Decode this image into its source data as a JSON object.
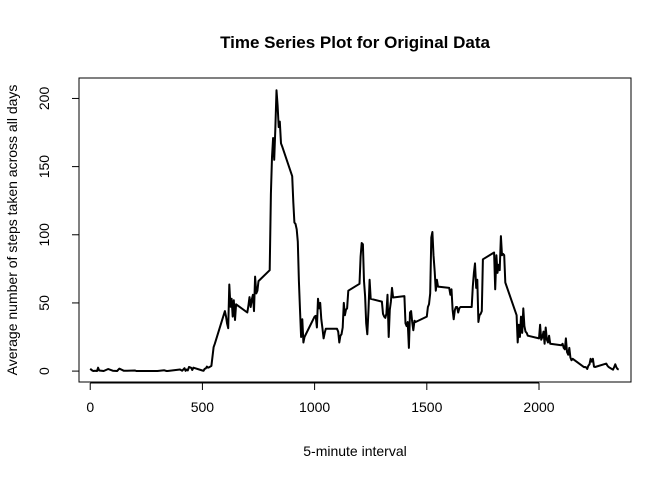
{
  "chart_data": {
    "type": "line",
    "title": "Time Series Plot for Original Data",
    "xlabel": "5-minute interval",
    "ylabel": "Average number of steps taken across all days",
    "xlim": [
      -50,
      2410
    ],
    "ylim": [
      -8,
      215
    ],
    "xticks": [
      0,
      500,
      1000,
      1500,
      2000
    ],
    "yticks": [
      0,
      50,
      100,
      150,
      200
    ],
    "grid": false,
    "series_color": "#000000",
    "series": [
      {
        "x": [
          0,
          10,
          15,
          20,
          30,
          35,
          40,
          50,
          60,
          80,
          100,
          120,
          130,
          150,
          200,
          205,
          210,
          300,
          330,
          340,
          345,
          400,
          410,
          420,
          425,
          430,
          435,
          440,
          450,
          455,
          460,
          500,
          505,
          510,
          515,
          520,
          525,
          530,
          540,
          550,
          555,
          600,
          605,
          610,
          615,
          620,
          625,
          630,
          635,
          640,
          645,
          650,
          700,
          705,
          710,
          715,
          720,
          725,
          730,
          735,
          740,
          745,
          750,
          800,
          805,
          810,
          815,
          820,
          825,
          830,
          835,
          840,
          845,
          850,
          855,
          900,
          905,
          910,
          915,
          920,
          925,
          930,
          935,
          940,
          945,
          950,
          955,
          1000,
          1005,
          1010,
          1015,
          1020,
          1025,
          1030,
          1035,
          1040,
          1045,
          1050,
          1100,
          1105,
          1110,
          1115,
          1120,
          1125,
          1130,
          1135,
          1140,
          1145,
          1150,
          1200,
          1205,
          1210,
          1215,
          1220,
          1225,
          1230,
          1235,
          1240,
          1245,
          1250,
          1300,
          1305,
          1310,
          1315,
          1320,
          1325,
          1330,
          1335,
          1340,
          1345,
          1350,
          1400,
          1405,
          1410,
          1415,
          1420,
          1425,
          1430,
          1435,
          1440,
          1445,
          1450,
          1500,
          1505,
          1510,
          1515,
          1520,
          1525,
          1530,
          1535,
          1540,
          1545,
          1550,
          1600,
          1605,
          1610,
          1615,
          1620,
          1625,
          1630,
          1635,
          1640,
          1645,
          1650,
          1700,
          1705,
          1710,
          1715,
          1720,
          1725,
          1730,
          1735,
          1740,
          1745,
          1750,
          1800,
          1805,
          1810,
          1815,
          1820,
          1825,
          1830,
          1835,
          1840,
          1845,
          1850,
          1900,
          1905,
          1910,
          1915,
          1920,
          1925,
          1930,
          1935,
          1940,
          1945,
          1950,
          2000,
          2005,
          2010,
          2015,
          2020,
          2025,
          2030,
          2035,
          2040,
          2045,
          2050,
          2100,
          2105,
          2110,
          2115,
          2120,
          2125,
          2130,
          2135,
          2140,
          2145,
          2150,
          2200,
          2205,
          2210,
          2215,
          2220,
          2225,
          2230,
          2235,
          2240,
          2245,
          2250,
          2300,
          2305,
          2310,
          2315,
          2320,
          2325,
          2330,
          2335,
          2340,
          2345,
          2350,
          2355
        ],
        "y": [
          1.7,
          0.3,
          0.1,
          0.2,
          0.1,
          2.5,
          0.4,
          0.3,
          0.1,
          1.5,
          0.3,
          0.1,
          1.8,
          0.2,
          0.4,
          0.1,
          0.1,
          0.1,
          0.6,
          0.1,
          0.1,
          1.2,
          0.3,
          2.1,
          0.2,
          1.1,
          0.5,
          3.0,
          2.4,
          0.8,
          2.5,
          0.4,
          0.2,
          1.7,
          2.0,
          3.3,
          2.5,
          2.8,
          3.8,
          17.5,
          20.0,
          44.0,
          40.2,
          34.8,
          31.5,
          63.5,
          47.2,
          53.0,
          40.0,
          52.0,
          37.5,
          49.0,
          43.0,
          48.0,
          54.3,
          47.0,
          52.5,
          56.0,
          44.0,
          69.3,
          57.0,
          59.0,
          66.0,
          74.0,
          130.0,
          157.0,
          171.0,
          155.0,
          177.0,
          206.0,
          195.0,
          179.0,
          183.0,
          167.0,
          165.0,
          143.0,
          124.0,
          109.0,
          108.0,
          104.0,
          95.0,
          66.0,
          45.0,
          25.0,
          38.0,
          21.0,
          25.0,
          40.0,
          40.5,
          32.0,
          53.0,
          46.0,
          50.0,
          38.0,
          31.0,
          24.0,
          28.0,
          31.0,
          31.0,
          29.0,
          21.0,
          26.0,
          27.0,
          32.0,
          50.0,
          41.0,
          45.0,
          46.0,
          59.0,
          64.0,
          84.0,
          94.0,
          93.0,
          66.0,
          55.0,
          35.0,
          27.0,
          45.0,
          67.0,
          53.0,
          51.0,
          42.0,
          40.0,
          39.0,
          42.0,
          56.0,
          25.0,
          45.0,
          51.0,
          61.0,
          54.0,
          55.0,
          35.0,
          33.0,
          36.0,
          17.0,
          43.0,
          44.0,
          36.0,
          30.0,
          37.0,
          36.0,
          40.0,
          47.0,
          49.0,
          57.0,
          98.0,
          102.0,
          85.0,
          73.0,
          59.0,
          67.0,
          62.0,
          61.0,
          56.0,
          60.0,
          45.0,
          38.0,
          45.0,
          47.0,
          47.0,
          43.0,
          46.0,
          47.0,
          47.0,
          62.0,
          72.0,
          79.0,
          61.0,
          67.0,
          36.0,
          41.0,
          42.0,
          44.0,
          82.0,
          87.0,
          60.0,
          85.0,
          72.0,
          78.0,
          74.0,
          99.0,
          85.0,
          86.0,
          85.0,
          65.0,
          41.0,
          21.0,
          34.0,
          25.0,
          40.0,
          28.0,
          46.0,
          33.0,
          29.0,
          28.0,
          26.0,
          24.0,
          34.0,
          23.0,
          25.0,
          29.0,
          20.0,
          32.0,
          23.0,
          21.0,
          26.0,
          20.0,
          19.0,
          20.0,
          17.0,
          16.0,
          24.0,
          14.0,
          12.0,
          17.0,
          10.0,
          8.0,
          9.0,
          2.9,
          3.0,
          2.8,
          1.5,
          4.0,
          5.0,
          9.0,
          7.0,
          9.0,
          3.2,
          3.0,
          5.5,
          4.0,
          3.0,
          2.5,
          2.0,
          1.5,
          1.0,
          3.0,
          5.0,
          2.8,
          1.5,
          1.1
        ]
      }
    ]
  }
}
